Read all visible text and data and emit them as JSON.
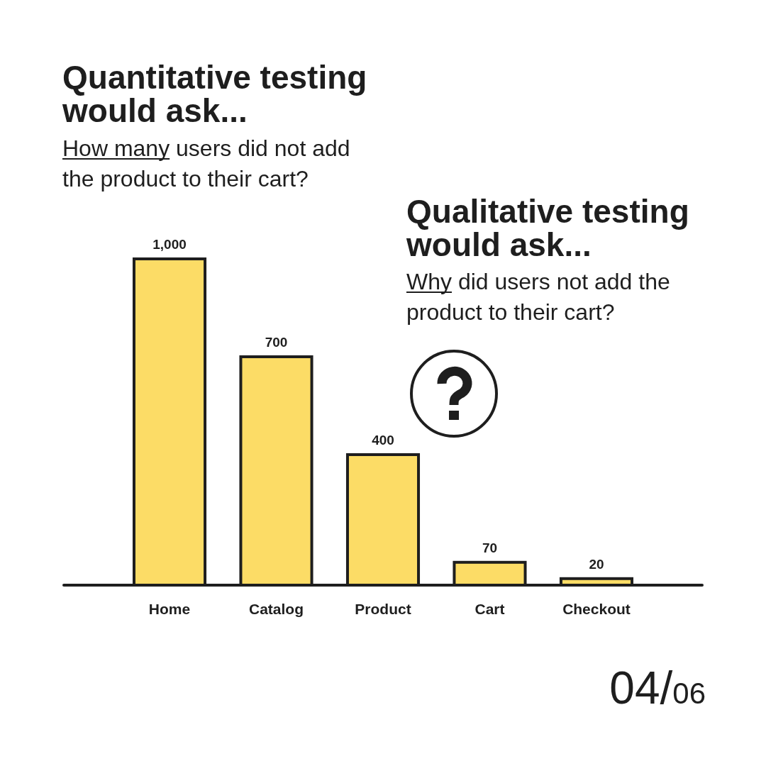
{
  "chart_data": {
    "type": "bar",
    "title": "Quantitative testing would ask...",
    "subtitle": "How many users did not add the product to their cart?",
    "categories": [
      "Home",
      "Catalog",
      "Product",
      "Cart",
      "Checkout"
    ],
    "values": [
      1000,
      700,
      400,
      70,
      20
    ],
    "value_labels": [
      "1,000",
      "700",
      "400",
      "70",
      "20"
    ],
    "color": "#fcdc66",
    "annotations": [
      "Qualitative testing would ask...",
      "Why did users not add the product to their cart?",
      "04/06"
    ]
  }
}
